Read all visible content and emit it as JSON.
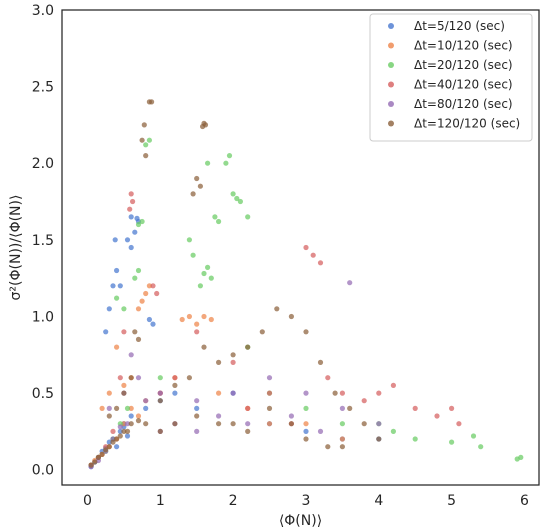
{
  "chart_data": {
    "type": "scatter",
    "title": "",
    "xlabel": "⟨Φ(N)⟩",
    "ylabel": "σ²(Φ(N))/⟨Φ(N)⟩",
    "xlim": [
      -0.35,
      6.2
    ],
    "ylim": [
      -0.1,
      3.0
    ],
    "x_ticks": [
      "0",
      "1",
      "2",
      "3",
      "4",
      "5",
      "6"
    ],
    "y_ticks": [
      "0.0",
      "0.5",
      "1.0",
      "1.5",
      "2.0",
      "2.5",
      "3.0"
    ],
    "grid": false,
    "legend_position": "top-right",
    "series": [
      {
        "name": "Δt=5/120 (sec)",
        "color": "#4878d0",
        "points": [
          [
            0.05,
            0.02
          ],
          [
            0.1,
            0.05
          ],
          [
            0.15,
            0.08
          ],
          [
            0.2,
            0.12
          ],
          [
            0.25,
            0.14
          ],
          [
            0.3,
            0.18
          ],
          [
            0.35,
            0.2
          ],
          [
            0.4,
            0.15
          ],
          [
            0.45,
            0.25
          ],
          [
            0.5,
            0.3
          ],
          [
            0.55,
            0.22
          ],
          [
            0.6,
            0.35
          ],
          [
            0.35,
            1.2
          ],
          [
            0.4,
            1.3
          ],
          [
            0.38,
            1.5
          ],
          [
            0.45,
            1.2
          ],
          [
            0.55,
            1.5
          ],
          [
            0.6,
            1.45
          ],
          [
            0.65,
            1.55
          ],
          [
            0.6,
            1.65
          ],
          [
            0.68,
            1.64
          ],
          [
            0.7,
            1.62
          ],
          [
            0.85,
            0.98
          ],
          [
            0.9,
            0.95
          ],
          [
            0.3,
            1.05
          ],
          [
            0.5,
            0.28
          ],
          [
            0.8,
            0.4
          ],
          [
            1.0,
            0.45
          ],
          [
            1.2,
            0.5
          ],
          [
            1.5,
            0.4
          ],
          [
            2.0,
            0.5
          ],
          [
            2.5,
            0.3
          ],
          [
            3.0,
            0.25
          ],
          [
            3.5,
            0.2
          ],
          [
            4.0,
            0.2
          ],
          [
            0.25,
            0.9
          ]
        ]
      },
      {
        "name": "Δt=10/120 (sec)",
        "color": "#ee854a",
        "points": [
          [
            0.05,
            0.03
          ],
          [
            0.1,
            0.06
          ],
          [
            0.2,
            0.1
          ],
          [
            0.3,
            0.15
          ],
          [
            0.4,
            0.2
          ],
          [
            0.5,
            0.3
          ],
          [
            0.6,
            0.4
          ],
          [
            0.7,
            0.35
          ],
          [
            0.8,
            0.45
          ],
          [
            0.5,
            0.55
          ],
          [
            0.6,
            0.6
          ],
          [
            0.7,
            1.05
          ],
          [
            0.75,
            1.1
          ],
          [
            0.8,
            1.15
          ],
          [
            0.85,
            1.2
          ],
          [
            1.3,
            0.98
          ],
          [
            1.4,
            1.0
          ],
          [
            1.5,
            0.95
          ],
          [
            1.6,
            1.0
          ],
          [
            1.7,
            0.98
          ],
          [
            1.2,
            0.6
          ],
          [
            1.8,
            0.5
          ],
          [
            2.2,
            0.4
          ],
          [
            2.5,
            0.3
          ],
          [
            3.0,
            0.3
          ],
          [
            3.5,
            0.2
          ],
          [
            0.4,
            0.8
          ],
          [
            0.3,
            0.5
          ],
          [
            0.2,
            0.4
          ],
          [
            1.0,
            0.5
          ]
        ]
      },
      {
        "name": "Δt=20/120 (sec)",
        "color": "#6acc64",
        "points": [
          [
            0.05,
            0.03
          ],
          [
            0.15,
            0.08
          ],
          [
            0.25,
            0.12
          ],
          [
            0.35,
            0.2
          ],
          [
            0.45,
            0.3
          ],
          [
            0.55,
            0.4
          ],
          [
            0.65,
            1.25
          ],
          [
            0.7,
            1.3
          ],
          [
            0.75,
            1.62
          ],
          [
            0.8,
            2.12
          ],
          [
            0.85,
            2.15
          ],
          [
            0.7,
            1.6
          ],
          [
            1.6,
            1.28
          ],
          [
            1.65,
            1.32
          ],
          [
            1.7,
            1.25
          ],
          [
            1.75,
            1.65
          ],
          [
            1.8,
            1.62
          ],
          [
            1.9,
            2.0
          ],
          [
            1.95,
            2.05
          ],
          [
            2.0,
            1.8
          ],
          [
            2.05,
            1.77
          ],
          [
            2.1,
            1.75
          ],
          [
            2.2,
            1.65
          ],
          [
            1.4,
            1.5
          ],
          [
            1.45,
            1.4
          ],
          [
            1.55,
            1.2
          ],
          [
            1.65,
            2.0
          ],
          [
            2.5,
            0.5
          ],
          [
            3.0,
            0.4
          ],
          [
            3.5,
            0.3
          ],
          [
            4.5,
            0.2
          ],
          [
            5.0,
            0.18
          ],
          [
            5.3,
            0.22
          ],
          [
            5.4,
            0.15
          ],
          [
            5.9,
            0.07
          ],
          [
            5.95,
            0.08
          ],
          [
            0.4,
            1.12
          ],
          [
            0.5,
            1.05
          ],
          [
            4.0,
            0.3
          ],
          [
            4.2,
            0.25
          ],
          [
            1.0,
            0.6
          ],
          [
            2.2,
            0.8
          ]
        ]
      },
      {
        "name": "Δt=40/120 (sec)",
        "color": "#d65f5f",
        "points": [
          [
            0.05,
            0.03
          ],
          [
            0.15,
            0.08
          ],
          [
            0.25,
            0.15
          ],
          [
            0.35,
            0.25
          ],
          [
            0.6,
            1.8
          ],
          [
            0.62,
            1.75
          ],
          [
            0.58,
            1.7
          ],
          [
            0.9,
            1.2
          ],
          [
            0.95,
            1.15
          ],
          [
            1.0,
            0.5
          ],
          [
            1.5,
            0.9
          ],
          [
            2.0,
            0.7
          ],
          [
            2.5,
            0.5
          ],
          [
            3.0,
            1.45
          ],
          [
            3.1,
            1.4
          ],
          [
            3.2,
            1.35
          ],
          [
            3.5,
            0.5
          ],
          [
            3.8,
            0.45
          ],
          [
            4.0,
            0.5
          ],
          [
            4.5,
            0.4
          ],
          [
            4.8,
            0.35
          ],
          [
            5.0,
            0.4
          ],
          [
            5.1,
            0.3
          ],
          [
            1.2,
            0.6
          ],
          [
            2.2,
            0.4
          ],
          [
            2.8,
            0.3
          ],
          [
            3.3,
            0.6
          ],
          [
            0.5,
            0.9
          ],
          [
            0.45,
            0.6
          ],
          [
            4.2,
            0.55
          ]
        ]
      },
      {
        "name": "Δt=80/120 (sec)",
        "color": "#956cb4",
        "points": [
          [
            0.05,
            0.02
          ],
          [
            0.15,
            0.06
          ],
          [
            0.25,
            0.12
          ],
          [
            0.35,
            0.2
          ],
          [
            0.45,
            0.28
          ],
          [
            0.55,
            0.3
          ],
          [
            0.8,
            0.45
          ],
          [
            1.0,
            0.5
          ],
          [
            1.5,
            0.45
          ],
          [
            2.0,
            0.5
          ],
          [
            2.5,
            0.6
          ],
          [
            3.0,
            0.5
          ],
          [
            3.5,
            0.4
          ],
          [
            3.6,
            1.22
          ],
          [
            4.0,
            0.3
          ],
          [
            0.3,
            0.4
          ],
          [
            0.5,
            0.5
          ],
          [
            0.7,
            0.6
          ],
          [
            1.2,
            0.3
          ],
          [
            1.8,
            0.35
          ],
          [
            2.2,
            0.3
          ],
          [
            2.8,
            0.35
          ],
          [
            3.2,
            0.25
          ],
          [
            1.0,
            0.25
          ],
          [
            1.5,
            0.25
          ],
          [
            0.6,
            0.75
          ]
        ]
      },
      {
        "name": "Δt=120/120 (sec)",
        "color": "#8c613c",
        "points": [
          [
            0.05,
            0.03
          ],
          [
            0.1,
            0.05
          ],
          [
            0.15,
            0.08
          ],
          [
            0.2,
            0.1
          ],
          [
            0.25,
            0.13
          ],
          [
            0.3,
            0.15
          ],
          [
            0.35,
            0.18
          ],
          [
            0.4,
            0.2
          ],
          [
            0.45,
            0.22
          ],
          [
            0.5,
            0.25
          ],
          [
            0.55,
            0.25
          ],
          [
            0.6,
            0.3
          ],
          [
            0.7,
            0.32
          ],
          [
            0.8,
            0.3
          ],
          [
            0.85,
            2.4
          ],
          [
            0.88,
            2.4
          ],
          [
            0.75,
            2.15
          ],
          [
            0.78,
            2.25
          ],
          [
            0.8,
            2.05
          ],
          [
            0.65,
            0.9
          ],
          [
            0.7,
            0.85
          ],
          [
            1.6,
            2.26
          ],
          [
            1.62,
            2.25
          ],
          [
            1.58,
            2.24
          ],
          [
            1.5,
            1.9
          ],
          [
            1.55,
            1.85
          ],
          [
            1.45,
            1.8
          ],
          [
            1.0,
            0.45
          ],
          [
            1.2,
            0.55
          ],
          [
            1.4,
            0.6
          ],
          [
            1.6,
            0.8
          ],
          [
            1.8,
            0.7
          ],
          [
            2.0,
            0.75
          ],
          [
            2.2,
            0.8
          ],
          [
            2.4,
            0.9
          ],
          [
            2.6,
            1.05
          ],
          [
            2.8,
            1.0
          ],
          [
            3.0,
            0.9
          ],
          [
            3.2,
            0.7
          ],
          [
            3.4,
            0.5
          ],
          [
            3.6,
            0.4
          ],
          [
            3.8,
            0.3
          ],
          [
            4.0,
            0.2
          ],
          [
            2.5,
            0.4
          ],
          [
            2.8,
            0.3
          ],
          [
            3.0,
            0.2
          ],
          [
            3.3,
            0.15
          ],
          [
            3.5,
            0.15
          ],
          [
            2.2,
            0.25
          ],
          [
            1.8,
            0.3
          ],
          [
            1.5,
            0.35
          ],
          [
            1.2,
            0.3
          ],
          [
            1.0,
            0.25
          ],
          [
            2.0,
            0.3
          ],
          [
            0.6,
            0.6
          ],
          [
            0.5,
            0.5
          ],
          [
            0.3,
            0.35
          ],
          [
            0.4,
            0.4
          ]
        ]
      }
    ]
  }
}
